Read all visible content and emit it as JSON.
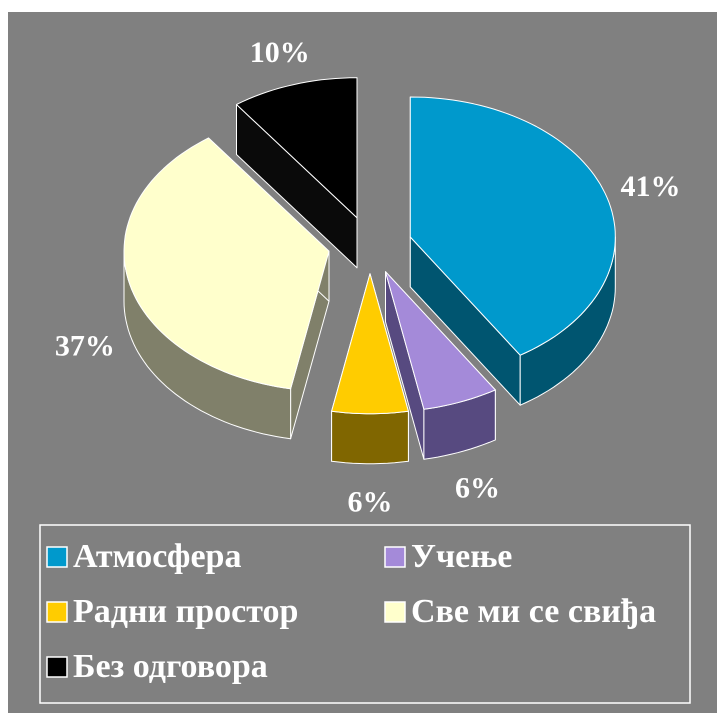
{
  "chart_data": {
    "type": "pie3d",
    "categories": [
      "Атмосфера",
      "Учење",
      "Радни простор",
      "Све ми се свиђа",
      "Без одговора"
    ],
    "values": [
      41,
      6,
      6,
      37,
      10
    ],
    "value_labels": [
      "41%",
      "6%",
      "6%",
      "37%",
      "10%"
    ],
    "colors": [
      "#0099cc",
      "#a48ad9",
      "#ffcc00",
      "#ffffcc",
      "#000000"
    ],
    "side_colors": [
      "#005570",
      "#574a80",
      "#806600",
      "#80806a",
      "#0a0a0a"
    ],
    "legend": "bottom"
  }
}
